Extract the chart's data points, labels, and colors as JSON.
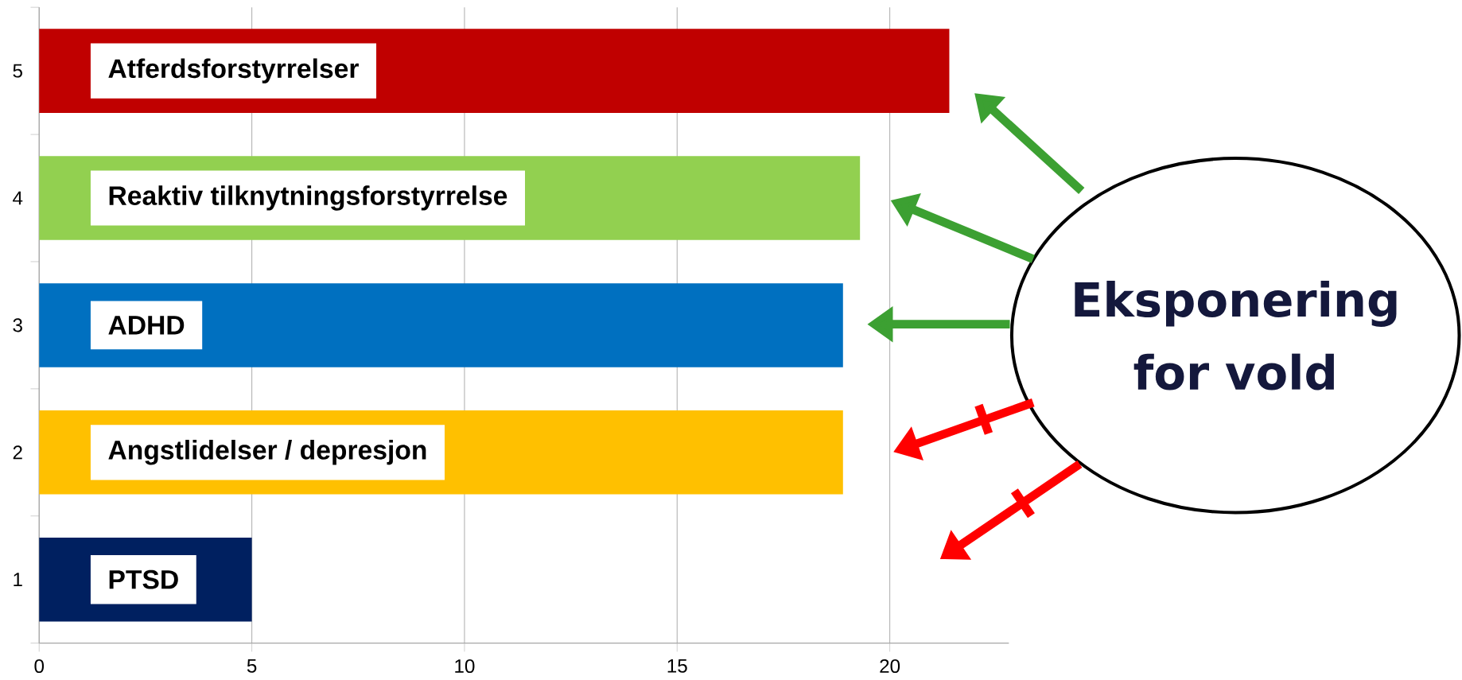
{
  "chart_data": {
    "type": "bar",
    "orientation": "horizontal",
    "categories": [
      "5",
      "4",
      "3",
      "2",
      "1"
    ],
    "values": [
      21.4,
      19.3,
      18.9,
      18.9,
      5
    ],
    "colors": [
      "#c00000",
      "#92d050",
      "#0070c0",
      "#ffc000",
      "#002060"
    ],
    "xlim": [
      0,
      22.8
    ],
    "xticks": [
      0,
      5,
      10,
      15,
      20
    ],
    "grid": "x",
    "annotations": [
      "Atferdsforstyrrelser",
      "Reaktiv tilknytningsforstyrrelse",
      "ADHD",
      "Angstlidelser / depresjon",
      "PTSD",
      "Eksponering for vold"
    ]
  }
}
